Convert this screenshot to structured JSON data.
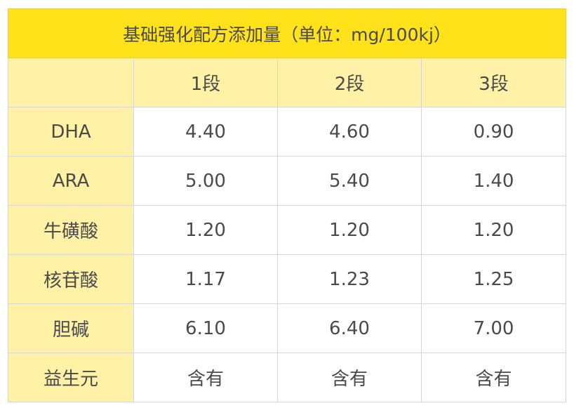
{
  "title": "基础强化配方添加量（单位：mg/100kj）",
  "columns": [
    "",
    "1段",
    "2段",
    "3段"
  ],
  "rows": [
    {
      "name": "DHA",
      "values": [
        "4.40",
        "4.60",
        "0.90"
      ]
    },
    {
      "name": "ARA",
      "values": [
        "5.00",
        "5.40",
        "1.40"
      ]
    },
    {
      "name": "牛磺酸",
      "values": [
        "1.20",
        "1.20",
        "1.20"
      ]
    },
    {
      "name": "核苷酸",
      "values": [
        "1.17",
        "1.23",
        "1.25"
      ]
    },
    {
      "name": "胆碱",
      "values": [
        "6.10",
        "6.40",
        "7.00"
      ]
    },
    {
      "name": "益生元",
      "values": [
        "含有",
        "含有",
        "含有"
      ]
    }
  ],
  "colors": {
    "title_bg": "#ffe21a",
    "header_bg": "#fff1a6",
    "text": "#4a4a4a"
  }
}
